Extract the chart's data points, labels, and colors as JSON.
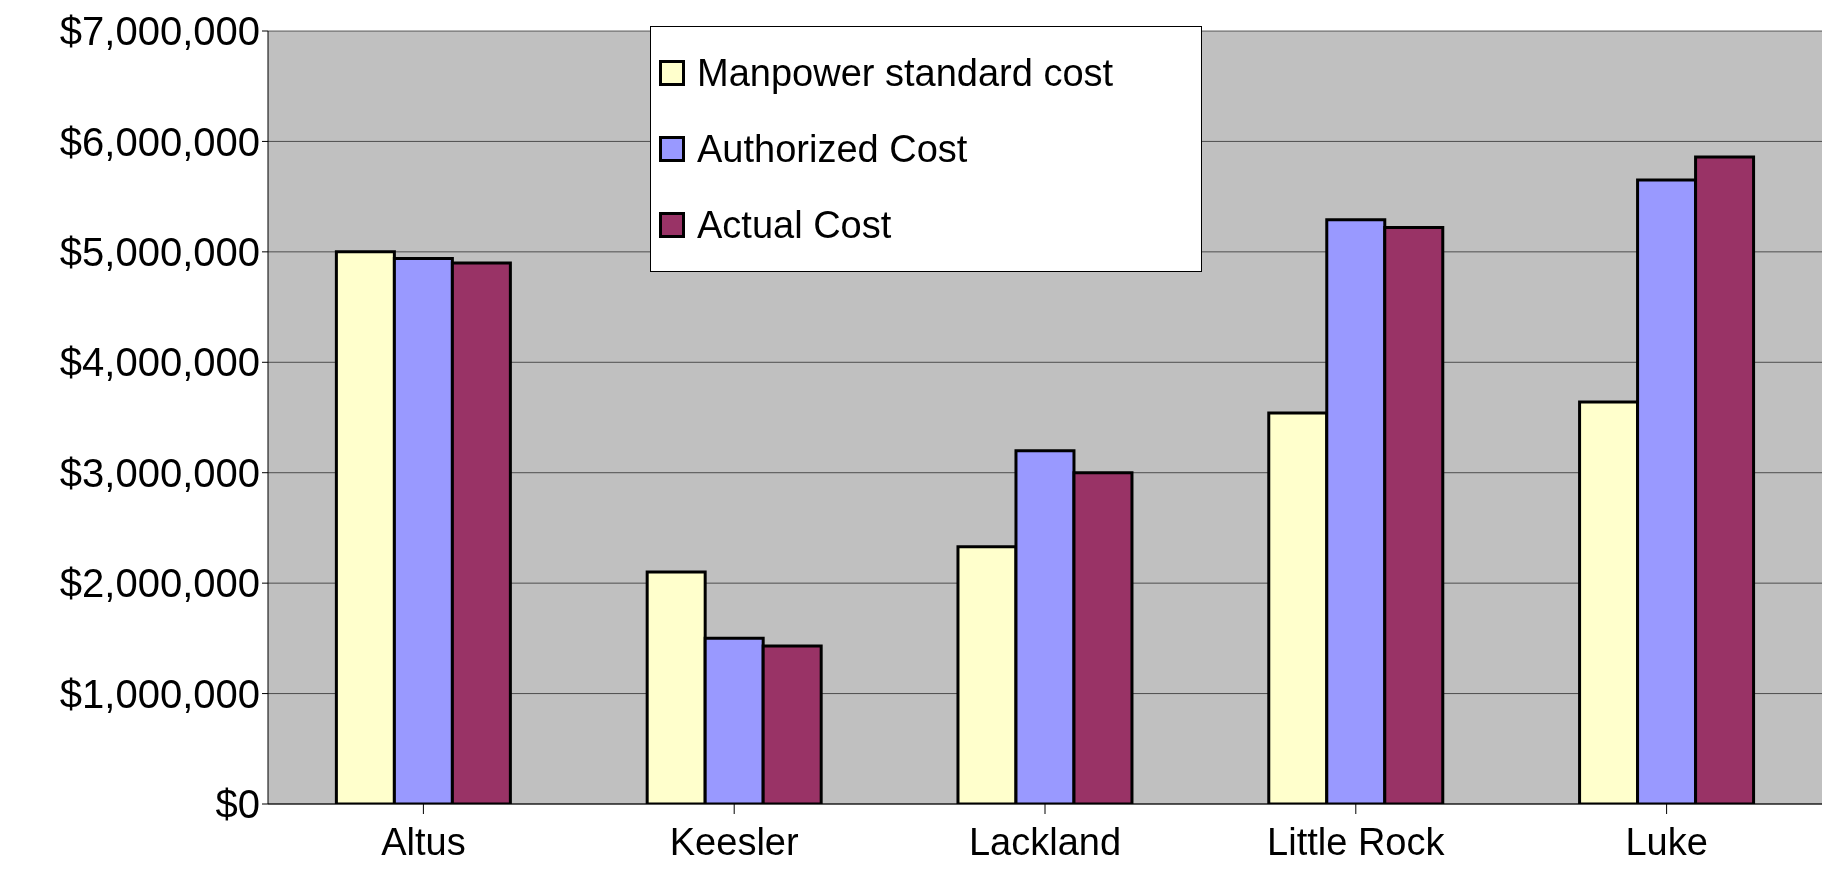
{
  "chart_data": {
    "type": "bar",
    "categories": [
      "Altus",
      "Keesler",
      "Lackland",
      "Little Rock",
      "Luke"
    ],
    "series": [
      {
        "name": "Manpower standard cost",
        "color": "#ffffcc",
        "values": [
          5000000,
          2100000,
          2330000,
          3540000,
          3640000
        ]
      },
      {
        "name": "Authorized Cost",
        "color": "#9999ff",
        "values": [
          4940000,
          1500000,
          3200000,
          5290000,
          5650000
        ]
      },
      {
        "name": "Actual Cost",
        "color": "#993366",
        "values": [
          4900000,
          1430000,
          3000000,
          5220000,
          5860000
        ]
      }
    ],
    "ylim": [
      0,
      7000000
    ],
    "yticks": [
      {
        "value": 0,
        "label": "$0"
      },
      {
        "value": 1000000,
        "label": "$1,000,000"
      },
      {
        "value": 2000000,
        "label": "$2,000,000"
      },
      {
        "value": 3000000,
        "label": "$3,000,000"
      },
      {
        "value": 4000000,
        "label": "$4,000,000"
      },
      {
        "value": 5000000,
        "label": "$5,000,000"
      },
      {
        "value": 6000000,
        "label": "$6,000,000"
      },
      {
        "value": 7000000,
        "label": "$7,000,000"
      }
    ],
    "grid": "y",
    "legend": "top"
  }
}
